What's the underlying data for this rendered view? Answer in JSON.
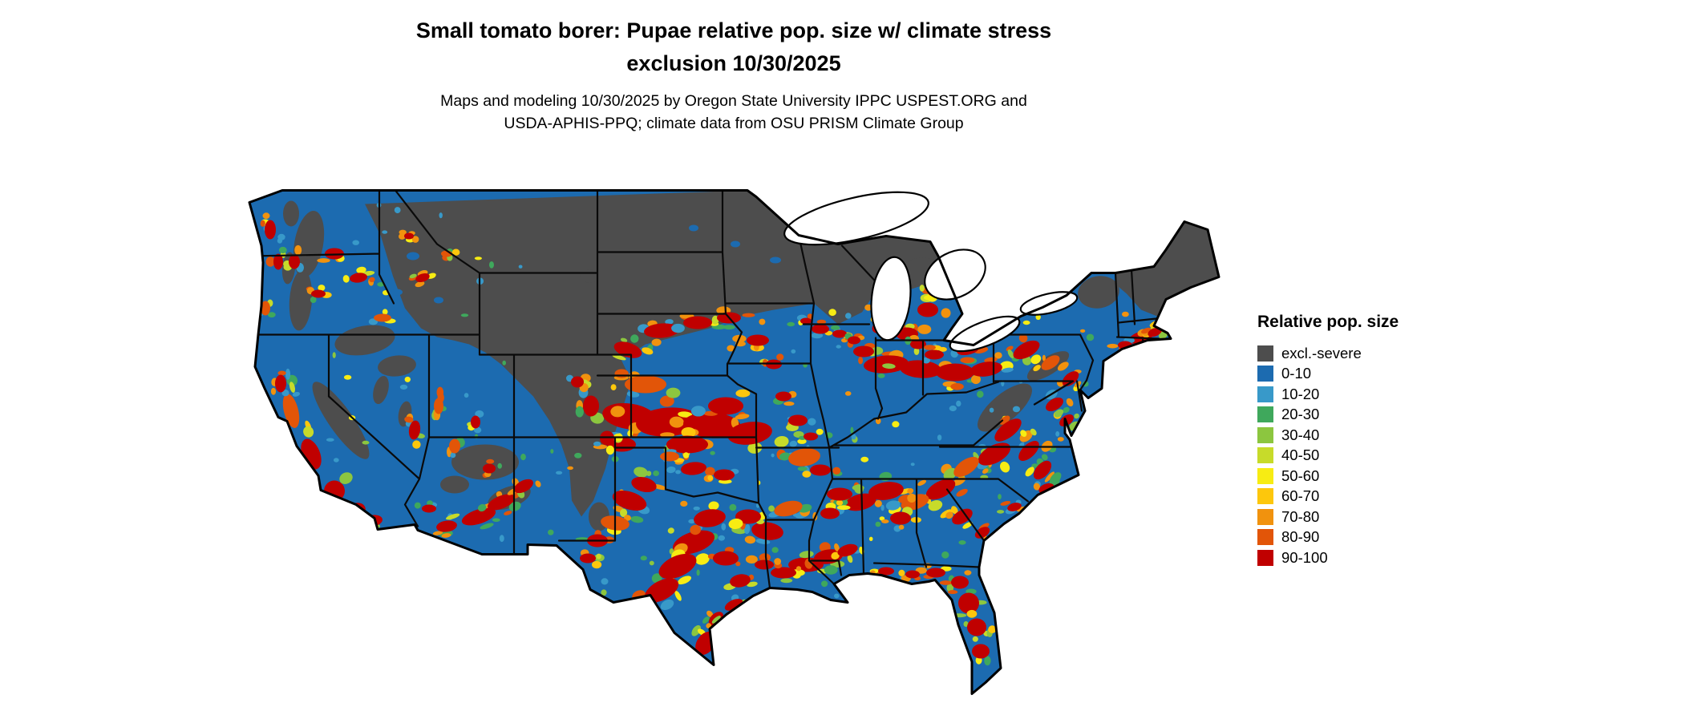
{
  "header": {
    "title_line1": "Small tomato borer: Pupae relative pop. size w/ climate stress",
    "title_line2": "exclusion 10/30/2025",
    "subtitle_line1": "Maps and modeling 10/30/2025 by Oregon State University IPPC USPEST.ORG and",
    "subtitle_line2": "USDA-APHIS-PPQ; climate data from OSU PRISM Climate Group"
  },
  "legend": {
    "title": "Relative pop. size",
    "items": [
      {
        "label": "excl.-severe",
        "color": "#4D4D4D"
      },
      {
        "label": "0-10",
        "color": "#1C6BB0"
      },
      {
        "label": "10-20",
        "color": "#3899C9"
      },
      {
        "label": "20-30",
        "color": "#3FA85C"
      },
      {
        "label": "30-40",
        "color": "#8CC63F"
      },
      {
        "label": "40-50",
        "color": "#C7DB2A"
      },
      {
        "label": "50-60",
        "color": "#F7EC13"
      },
      {
        "label": "60-70",
        "color": "#FDC70C"
      },
      {
        "label": "70-80",
        "color": "#F1920E"
      },
      {
        "label": "80-90",
        "color": "#E25508"
      },
      {
        "label": "90-100",
        "color": "#C00000"
      }
    ]
  },
  "map": {
    "region": "Contiguous United States",
    "background_color": "#FFFFFF",
    "border_color": "#000000"
  }
}
